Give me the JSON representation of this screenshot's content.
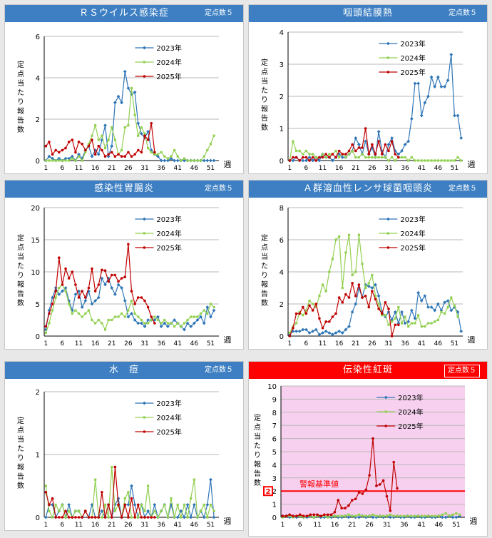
{
  "panels": [
    {
      "title": "ＲＳウイルス感染症",
      "badge": "定点数５",
      "highlight": false
    },
    {
      "title": "咽頭結膜熱",
      "badge": "定点数５",
      "highlight": false
    },
    {
      "title": "感染性胃腸炎",
      "badge": "定点数５",
      "highlight": false
    },
    {
      "title": "Ａ群溶血性レンサ球菌咽頭炎",
      "badge": "定点数５",
      "highlight": false
    },
    {
      "title": "水　痘",
      "badge": "定点数５",
      "highlight": false
    },
    {
      "title": "伝染性紅斑",
      "badge": "定点数５",
      "highlight": true
    }
  ],
  "chart_data": [
    {
      "type": "line",
      "title": "ＲＳウイルス感染症",
      "ylabel": "定点当たり報告数",
      "xlabel": "週",
      "ylim": [
        0,
        6
      ],
      "yticks": [
        0,
        2,
        4,
        6
      ],
      "xticks": [
        1,
        6,
        11,
        16,
        21,
        26,
        31,
        36,
        41,
        46,
        51
      ],
      "series": [
        {
          "name": "2023年",
          "color": "#2e75b6",
          "values": [
            0,
            0.2,
            0.1,
            0,
            0.1,
            0,
            0.1,
            0.1,
            0.2,
            0,
            0.3,
            0.1,
            0.5,
            0.7,
            0.2,
            0.5,
            0.3,
            1,
            1.7,
            0.2,
            0.7,
            2.8,
            3.1,
            2.8,
            4.3,
            3.5,
            3.2,
            3.3,
            1.8,
            1.3,
            1.1,
            1.4,
            0.5,
            0.3,
            0.2,
            0,
            0,
            0,
            0.1,
            0,
            0,
            0,
            0,
            0,
            0,
            0,
            0,
            0,
            0,
            0,
            0,
            0
          ]
        },
        {
          "name": "2024年",
          "color": "#92d050",
          "values": [
            0,
            0,
            0,
            0,
            0,
            0,
            0,
            0,
            0.1,
            0,
            0.2,
            0,
            0.4,
            0.8,
            1.2,
            1.7,
            1,
            1.2,
            0.6,
            1,
            1.6,
            1,
            0.3,
            0.5,
            1.6,
            1.7,
            3.5,
            2.2,
            1.2,
            1.6,
            1.3,
            0.6,
            0.4,
            0.3,
            0.3,
            0.4,
            0.2,
            0.1,
            0.2,
            0.5,
            0.2,
            0,
            0.1,
            0,
            0,
            0,
            0,
            0,
            0.2,
            0.5,
            0.8,
            1.2
          ]
        },
        {
          "name": "2025年",
          "color": "#c00000",
          "values": [
            0.7,
            0.9,
            0.3,
            0.5,
            0.4,
            0.5,
            0.6,
            0.9,
            1,
            0.4,
            0.9,
            0.8,
            0.5,
            0.7,
            1,
            0.3,
            0.7,
            0.5,
            0.2,
            0.3,
            0.4,
            0.2,
            0.3,
            0.2,
            0.2,
            0.4,
            0.2,
            0.3,
            0.5,
            0.4,
            1.2,
            1,
            1.8,
            0.4
          ]
        }
      ]
    },
    {
      "type": "line",
      "title": "咽頭結膜熱",
      "ylabel": "定点当たり報告数",
      "xlabel": "週",
      "ylim": [
        0,
        4
      ],
      "yticks": [
        0,
        1,
        2,
        3,
        4
      ],
      "xticks": [
        1,
        6,
        11,
        16,
        21,
        26,
        31,
        36,
        41,
        46,
        51
      ],
      "series": [
        {
          "name": "2023年",
          "color": "#2e75b6",
          "values": [
            0,
            0,
            0.1,
            0,
            0,
            0,
            0.1,
            0,
            0.1,
            0,
            0.2,
            0.1,
            0.1,
            0,
            0.1,
            0.2,
            0.1,
            0.1,
            0.2,
            0.3,
            0.7,
            0.5,
            0.2,
            0.6,
            0.2,
            0.4,
            0.1,
            0.9,
            0.3,
            0.1,
            0.5,
            0.7,
            0.3,
            0.2,
            0.3,
            0.5,
            0.6,
            1.3,
            2.4,
            2.4,
            1.4,
            1.8,
            2,
            2.6,
            2.3,
            2.6,
            2.3,
            2.3,
            2.5,
            3.3,
            1.4,
            1.4,
            0.7
          ]
        },
        {
          "name": "2024年",
          "color": "#92d050",
          "values": [
            0,
            0.6,
            0.3,
            0.3,
            0.2,
            0.3,
            0.2,
            0.2,
            0.1,
            0.1,
            0.2,
            0.1,
            0.2,
            0.2,
            0.3,
            0.1,
            0.2,
            0.1,
            0.2,
            0.3,
            0.1,
            0.1,
            0.2,
            0.1,
            0.1,
            0.1,
            0.1,
            0.1,
            0.1,
            0.1,
            0,
            0.1,
            0,
            0.1,
            0.1,
            0.1,
            0,
            0.1,
            0,
            0,
            0,
            0,
            0,
            0,
            0,
            0,
            0,
            0,
            0,
            0,
            0,
            0.1,
            0
          ]
        },
        {
          "name": "2025年",
          "color": "#c00000",
          "values": [
            0,
            0.1,
            0.1,
            0,
            0.1,
            0.1,
            0,
            0.1,
            0,
            0.1,
            0.1,
            0.2,
            0.1,
            0.2,
            0.1,
            0.3,
            0.2,
            0.2,
            0.3,
            0.5,
            0.3,
            0.4,
            0.4,
            1,
            0.2,
            0.5,
            0.2,
            0.6,
            0.2,
            0.5,
            0.3,
            0.6,
            0.2,
            0.1
          ]
        }
      ]
    },
    {
      "type": "line",
      "title": "感染性胃腸炎",
      "ylabel": "定点当たり報告数",
      "xlabel": "週",
      "ylim": [
        0,
        20
      ],
      "yticks": [
        0,
        5,
        10,
        15,
        20
      ],
      "xticks": [
        1,
        6,
        11,
        16,
        21,
        26,
        31,
        36,
        41,
        46,
        51
      ],
      "series": [
        {
          "name": "2023年",
          "color": "#2e75b6",
          "values": [
            1,
            4,
            6,
            7.5,
            6.5,
            7,
            7.5,
            5.5,
            4,
            6.5,
            7,
            4.5,
            5.5,
            7,
            5,
            5.5,
            6,
            9,
            8,
            9,
            7.5,
            6.5,
            8,
            7.5,
            5.5,
            3,
            3.5,
            2.5,
            2,
            2,
            1.5,
            2.5,
            2.5,
            2.5,
            3,
            1.5,
            2,
            1.5,
            2,
            2.5,
            2,
            1.5,
            1,
            2,
            1.5,
            2,
            2.5,
            3,
            2,
            4.5,
            3,
            4
          ]
        },
        {
          "name": "2024年",
          "color": "#92d050",
          "values": [
            0.5,
            2,
            4,
            6,
            7.5,
            8,
            7,
            5,
            3.5,
            4,
            3.5,
            3,
            3.5,
            4,
            2.5,
            2,
            2.5,
            2,
            1,
            2.5,
            2.5,
            3,
            3,
            3.5,
            3,
            4,
            5.5,
            3.5,
            3,
            2.5,
            2,
            2,
            2.5,
            3,
            2.5,
            2,
            2.5,
            2,
            2,
            1.5,
            2,
            1.5,
            2,
            2.5,
            3,
            3,
            3,
            3.5,
            4,
            3.5,
            5,
            4.5
          ]
        },
        {
          "name": "2025年",
          "color": "#c00000",
          "values": [
            1.5,
            3.5,
            5,
            7,
            12.2,
            8,
            10.5,
            9,
            10,
            8,
            6,
            7,
            6,
            7.5,
            10.5,
            7,
            8,
            10.3,
            10.2,
            8.5,
            9.5,
            9.5,
            8.5,
            9,
            9.2,
            14.3,
            7,
            5,
            6,
            6,
            5.5,
            4.5,
            3,
            2
          ]
        }
      ]
    },
    {
      "type": "line",
      "title": "Ａ群溶血性レンサ球菌咽頭炎",
      "ylabel": "定点当たり報告数",
      "xlabel": "週",
      "ylim": [
        0,
        8
      ],
      "yticks": [
        0,
        2,
        4,
        6,
        8
      ],
      "xticks": [
        1,
        6,
        11,
        16,
        21,
        26,
        31,
        36,
        41,
        46,
        51
      ],
      "series": [
        {
          "name": "2023年",
          "color": "#2e75b6",
          "values": [
            0.1,
            0.3,
            0.3,
            0.3,
            0.4,
            0.4,
            0.2,
            0.3,
            0.4,
            0.1,
            0.2,
            0.3,
            0.2,
            0.1,
            0.2,
            0.3,
            0.2,
            0.4,
            0.6,
            1.5,
            2,
            3,
            2.4,
            3.2,
            3.1,
            3,
            3.2,
            2.5,
            1.5,
            1.2,
            1.5,
            1,
            1.5,
            0.8,
            1.5,
            0.8,
            0.9,
            1.6,
            1.1,
            2.7,
            2.2,
            2.5,
            1.8,
            1.8,
            1.6,
            2,
            1.6,
            2.1,
            2.2,
            1.6,
            1.8,
            1.5,
            0.3
          ]
        },
        {
          "name": "2024年",
          "color": "#92d050",
          "values": [
            0.2,
            0.6,
            0.8,
            1.5,
            1.3,
            1.6,
            2.2,
            2,
            1.8,
            2.5,
            3.2,
            2.8,
            4,
            4.8,
            6,
            6.2,
            3,
            5.2,
            6.3,
            3.8,
            4,
            6.3,
            4.5,
            3,
            3.3,
            3.8,
            2.5,
            2,
            1.3,
            1.3,
            0.7,
            0.9,
            1.1,
            1.8,
            0.8,
            1.2,
            0.6,
            0.8,
            0.8,
            1.3,
            0.6,
            0.6,
            0.8,
            0.8,
            0.9,
            1,
            1.5,
            1.4,
            1.8,
            2.4,
            1.9,
            1.2
          ]
        },
        {
          "name": "2025年",
          "color": "#c00000",
          "values": [
            0,
            0.5,
            1.4,
            1.4,
            1.8,
            1.4,
            1.9,
            1.6,
            2,
            1.1,
            0.5,
            0.9,
            0.9,
            1.2,
            1.4,
            2.4,
            2.1,
            2.6,
            2.4,
            3.3,
            2.5,
            3.2,
            2.4,
            2.5,
            1.8,
            2.8,
            2.3,
            1.7,
            1.4,
            2.1,
            1.7,
            0,
            0.7,
            0.7
          ]
        }
      ]
    },
    {
      "type": "line",
      "title": "水　痘",
      "ylabel": "定点当たり報告数",
      "xlabel": "週",
      "ylim": [
        0,
        2
      ],
      "yticks": [
        0,
        1,
        2
      ],
      "xticks": [
        1,
        6,
        11,
        16,
        21,
        26,
        31,
        36,
        41,
        46,
        51
      ],
      "series": [
        {
          "name": "2023年",
          "color": "#2e75b6",
          "values": [
            0,
            0.2,
            0.2,
            0,
            0.1,
            0.2,
            0,
            0.2,
            0,
            0.1,
            0.1,
            0,
            0.1,
            0,
            0.2,
            0,
            0,
            0.1,
            0,
            0.2,
            0,
            0.2,
            0.3,
            0,
            0.2,
            0.2,
            0.5,
            0.2,
            0,
            0.2,
            0,
            0.1,
            0,
            0.2,
            0,
            0.1,
            0.2,
            0,
            0.2,
            0,
            0,
            0.1,
            0,
            0.2,
            0,
            0.2,
            0,
            0.1,
            0,
            0.2,
            0.6,
            0
          ]
        },
        {
          "name": "2024年",
          "color": "#92d050",
          "values": [
            0.5,
            0.1,
            0,
            0.2,
            0.1,
            0.2,
            0,
            0.1,
            0,
            0.1,
            0.1,
            0,
            0.1,
            0,
            0,
            0.6,
            0,
            0,
            0.2,
            0,
            0.8,
            0.1,
            0.2,
            0,
            0.3,
            0.4,
            0,
            0,
            0,
            0.2,
            0.1,
            0.5,
            0,
            0.1,
            0,
            0.1,
            0.2,
            0,
            0.3,
            0,
            0.2,
            0,
            0.2,
            0,
            0.3,
            0.6,
            0,
            0.1,
            0.2,
            0,
            0.2,
            0.1
          ]
        },
        {
          "name": "2025年",
          "color": "#c00000",
          "values": [
            0.4,
            0.2,
            0.3,
            0,
            0,
            0,
            0.1,
            0,
            0,
            0,
            0,
            0,
            0.1,
            0,
            0,
            0,
            0,
            0.4,
            0,
            0.2,
            0,
            0.8,
            0.2,
            0,
            0.2,
            0,
            0.3,
            0,
            0.2,
            0,
            0,
            0,
            0,
            0
          ]
        }
      ]
    },
    {
      "type": "line",
      "title": "伝染性紅斑",
      "ylabel": "定点当たり報告数",
      "xlabel": "週",
      "ylim": [
        0,
        10
      ],
      "yticks": [
        0,
        1,
        2,
        3,
        4,
        5,
        6,
        7,
        8,
        9,
        10
      ],
      "xticks": [
        1,
        6,
        11,
        16,
        21,
        26,
        31,
        36,
        41,
        46,
        51
      ],
      "threshold": {
        "value": 2,
        "label": "警報基準値",
        "marker": "2"
      },
      "series": [
        {
          "name": "2023年",
          "color": "#2e75b6",
          "values": [
            0.1,
            0.1,
            0,
            0.1,
            0,
            0.1,
            0,
            0,
            0.1,
            0,
            0.1,
            0,
            0,
            0.1,
            0,
            0.1,
            0,
            0,
            0.1,
            0,
            0.1,
            0,
            0,
            0.1,
            0,
            0.1,
            0,
            0,
            0.1,
            0,
            0.1,
            0,
            0,
            0.1,
            0,
            0,
            0.1,
            0,
            0,
            0.1,
            0,
            0,
            0.1,
            0,
            0,
            0.1,
            0,
            0,
            0.1,
            0,
            0,
            0.1
          ]
        },
        {
          "name": "2024年",
          "color": "#92d050",
          "values": [
            0,
            0.1,
            0.1,
            0,
            0.1,
            0.1,
            0,
            0.1,
            0.1,
            0,
            0.1,
            0.1,
            0.1,
            0,
            0.1,
            0.1,
            0.1,
            0.1,
            0.1,
            0.2,
            0.1,
            0.1,
            0.2,
            0.1,
            0.1,
            0.1,
            0.2,
            0.1,
            0.1,
            0.1,
            0.1,
            0.2,
            0.1,
            0.1,
            0.1,
            0.1,
            0.1,
            0.1,
            0.1,
            0.1,
            0.1,
            0.1,
            0.1,
            0.1,
            0.1,
            0.1,
            0.2,
            0.3,
            0.1,
            0.2,
            0.3,
            0.2
          ]
        },
        {
          "name": "2025年",
          "color": "#c00000",
          "values": [
            0.1,
            0.1,
            0.2,
            0.1,
            0.1,
            0.2,
            0.1,
            0.1,
            0.2,
            0.2,
            0.2,
            0.1,
            0.2,
            0.2,
            0.2,
            0.4,
            1.3,
            0.7,
            0.7,
            0.9,
            1.3,
            1.4,
            1.9,
            1.8,
            2.1,
            3.2,
            6,
            2.4,
            2.5,
            2.8,
            1.6,
            0.5,
            4.2,
            2.2
          ]
        }
      ]
    }
  ]
}
